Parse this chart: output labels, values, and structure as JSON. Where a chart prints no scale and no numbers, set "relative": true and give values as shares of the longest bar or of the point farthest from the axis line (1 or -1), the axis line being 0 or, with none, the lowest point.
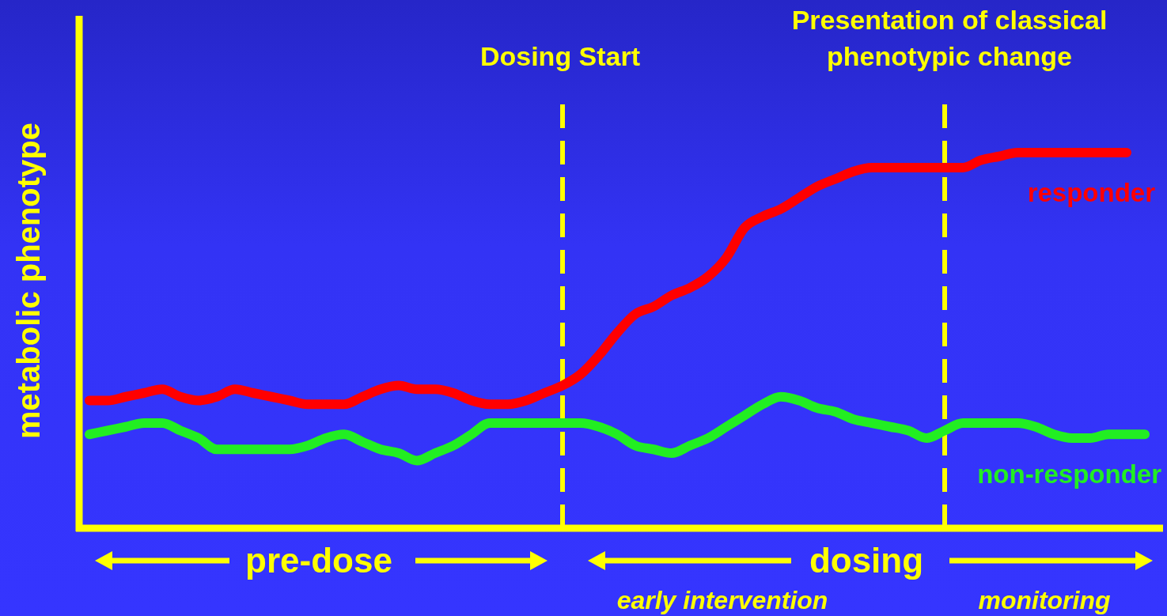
{
  "chart_data": {
    "type": "line",
    "ylabel": "metabolic phenotype",
    "relative": true,
    "legend": false,
    "tick_labels": false,
    "marker": "none",
    "line_style": "solid",
    "categories": [
      null,
      null,
      null,
      null,
      null,
      null,
      null,
      null,
      null,
      null,
      null,
      null,
      null,
      null,
      null,
      null,
      null,
      null,
      null,
      null,
      null,
      null,
      null,
      null,
      null,
      null,
      null,
      null,
      null,
      null,
      null,
      null,
      null,
      null,
      null,
      null,
      null,
      null,
      null,
      null,
      null,
      null,
      null,
      null,
      null,
      null,
      null,
      null,
      null,
      null,
      null,
      null,
      null,
      null,
      null,
      null,
      null,
      null,
      null,
      null
    ],
    "series": [
      {
        "name": "responder",
        "color": "#ff0000",
        "values": [
          0.34,
          0.34,
          0.35,
          0.36,
          0.37,
          0.35,
          0.34,
          0.35,
          0.37,
          0.36,
          0.35,
          0.34,
          0.33,
          0.33,
          0.33,
          0.35,
          0.37,
          0.38,
          0.37,
          0.37,
          0.36,
          0.34,
          0.33,
          0.33,
          0.34,
          0.36,
          0.38,
          0.41,
          0.46,
          0.52,
          0.57,
          0.59,
          0.62,
          0.64,
          0.67,
          0.72,
          0.8,
          0.83,
          0.85,
          0.88,
          0.91,
          0.93,
          0.95,
          0.96,
          0.96,
          0.96,
          0.96,
          0.96,
          0.96,
          0.98,
          0.99,
          1,
          1,
          1,
          1,
          1,
          1,
          1,
          null,
          null
        ]
      },
      {
        "name": "non-responder",
        "color": "#22ee22",
        "values": [
          0.25,
          0.26,
          0.27,
          0.28,
          0.28,
          0.26,
          0.24,
          0.21,
          0.21,
          0.21,
          0.21,
          0.21,
          0.22,
          0.24,
          0.25,
          0.23,
          0.21,
          0.2,
          0.18,
          0.2,
          0.22,
          0.25,
          0.28,
          0.28,
          0.28,
          0.28,
          0.28,
          0.28,
          0.27,
          0.25,
          0.22,
          0.21,
          0.2,
          0.22,
          0.24,
          0.27,
          0.3,
          0.33,
          0.35,
          0.34,
          0.32,
          0.31,
          0.29,
          0.28,
          0.27,
          0.26,
          0.24,
          0.26,
          0.28,
          0.28,
          0.28,
          0.28,
          0.27,
          0.25,
          0.24,
          0.24,
          0.25,
          0.25,
          0.25,
          null
        ]
      }
    ],
    "annotations": [
      "Dosing Start",
      "Presentation of classical phenotypic change",
      "pre-dose",
      "dosing",
      "early intervention",
      "monitoring"
    ]
  }
}
